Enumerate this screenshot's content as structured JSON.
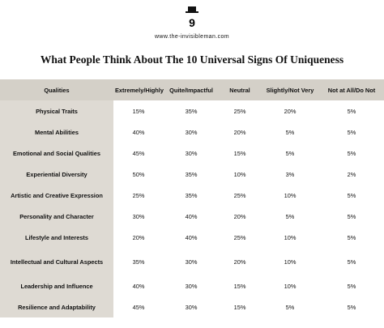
{
  "header": {
    "logo": "9",
    "url": "www.the-invisibleman.com",
    "title": "What People Think About The 10 Universal Signs Of Uniqueness"
  },
  "table": {
    "columns": [
      "Qualities",
      "Extremely/Highly",
      "Quite/Impactful",
      "Neutral",
      "Slightly/Not Very",
      "Not at All/Do Not"
    ],
    "rows": [
      [
        "Physical Traits",
        "15%",
        "35%",
        "25%",
        "20%",
        "5%"
      ],
      [
        "Mental Abilities",
        "40%",
        "30%",
        "20%",
        "5%",
        "5%"
      ],
      [
        "Emotional and Social Qualities",
        "45%",
        "30%",
        "15%",
        "5%",
        "5%"
      ],
      [
        "Experiential Diversity",
        "50%",
        "35%",
        "10%",
        "3%",
        "2%"
      ],
      [
        "Artistic and Creative Expression",
        "25%",
        "35%",
        "25%",
        "10%",
        "5%"
      ],
      [
        "Personality and Character",
        "30%",
        "40%",
        "20%",
        "5%",
        "5%"
      ],
      [
        "Lifestyle and Interests",
        "20%",
        "40%",
        "25%",
        "10%",
        "5%"
      ],
      [
        "Intellectual and Cultural Aspects",
        "35%",
        "30%",
        "20%",
        "10%",
        "5%"
      ],
      [
        "Leadership and Influence",
        "40%",
        "30%",
        "15%",
        "10%",
        "5%"
      ],
      [
        "Resilience and Adaptability",
        "45%",
        "30%",
        "15%",
        "5%",
        "5%"
      ]
    ]
  }
}
